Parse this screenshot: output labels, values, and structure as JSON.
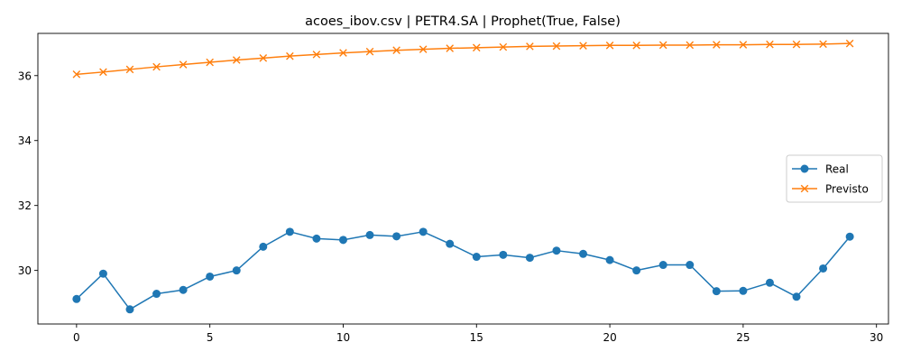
{
  "chart_data": {
    "type": "line",
    "title": "acoes_ibov.csv | PETR4.SA | Prophet(True, False)",
    "xlabel": "",
    "ylabel": "",
    "xlim": [
      -1.45,
      30.45
    ],
    "ylim": [
      28.35,
      37.3
    ],
    "x_ticks": [
      0,
      5,
      10,
      15,
      20,
      25,
      30
    ],
    "y_ticks": [
      30,
      32,
      34,
      36
    ],
    "grid": false,
    "legend_position": "center-right",
    "x": [
      0,
      1,
      2,
      3,
      4,
      5,
      6,
      7,
      8,
      9,
      10,
      11,
      12,
      13,
      14,
      15,
      16,
      17,
      18,
      19,
      20,
      21,
      22,
      23,
      24,
      25,
      26,
      27,
      28,
      29
    ],
    "series": [
      {
        "name": "Real",
        "color": "#1f77b4",
        "marker": "circle",
        "values": [
          29.12,
          29.9,
          28.8,
          29.28,
          29.4,
          29.81,
          30.0,
          30.73,
          31.19,
          30.98,
          30.94,
          31.09,
          31.05,
          31.19,
          30.82,
          30.42,
          30.48,
          30.39,
          30.61,
          30.51,
          30.32,
          30.0,
          30.17,
          30.17,
          29.36,
          29.37,
          29.62,
          29.19,
          30.06,
          31.04
        ]
      },
      {
        "name": "Previsto",
        "color": "#ff7f0e",
        "marker": "x",
        "values": [
          36.04,
          36.11,
          36.19,
          36.27,
          36.34,
          36.41,
          36.48,
          36.54,
          36.6,
          36.65,
          36.7,
          36.74,
          36.78,
          36.81,
          36.84,
          36.86,
          36.88,
          36.9,
          36.91,
          36.92,
          36.93,
          36.93,
          36.94,
          36.94,
          36.95,
          36.95,
          36.96,
          36.96,
          36.97,
          36.99
        ]
      }
    ]
  }
}
